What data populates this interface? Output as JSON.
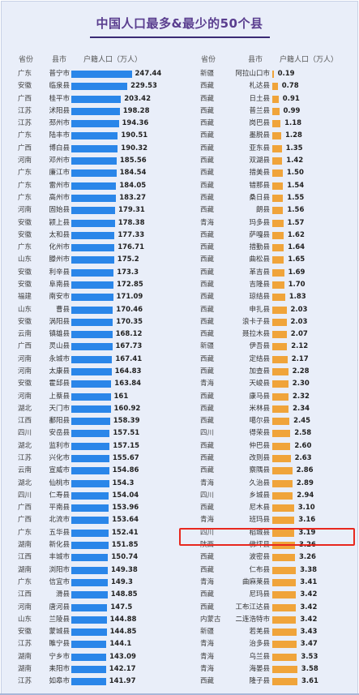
{
  "title": "中国人口最多&最少的50个县",
  "headers": {
    "prov": "省份",
    "county": "县市",
    "value": "户籍人口（万人）"
  },
  "colors": {
    "left_bar": "#2a86e9",
    "right_bar": "#f0a43a",
    "highlight": "#e8281e"
  },
  "chart_data": [
    {
      "type": "bar",
      "orientation": "horizontal",
      "title": "中国人口最多&最少的50个县",
      "unit": "户籍人口（万人）",
      "rows": [
        {
          "prov": "广东",
          "county": "普宁市",
          "value": "247.44"
        },
        {
          "prov": "安徽",
          "county": "临泉县",
          "value": "229.53"
        },
        {
          "prov": "广西",
          "county": "桂平市",
          "value": "203.42"
        },
        {
          "prov": "江苏",
          "county": "沭阳县",
          "value": "198.28"
        },
        {
          "prov": "江苏",
          "county": "邳州市",
          "value": "194.36"
        },
        {
          "prov": "广东",
          "county": "陆丰市",
          "value": "190.51"
        },
        {
          "prov": "广西",
          "county": "博白县",
          "value": "190.32"
        },
        {
          "prov": "河南",
          "county": "邓州市",
          "value": "185.56"
        },
        {
          "prov": "广东",
          "county": "廉江市",
          "value": "184.54"
        },
        {
          "prov": "广东",
          "county": "雷州市",
          "value": "184.05"
        },
        {
          "prov": "广东",
          "county": "高州市",
          "value": "183.27"
        },
        {
          "prov": "河南",
          "county": "固始县",
          "value": "179.31"
        },
        {
          "prov": "安徽",
          "county": "颍上县",
          "value": "178.38"
        },
        {
          "prov": "安徽",
          "county": "太和县",
          "value": "177.33"
        },
        {
          "prov": "广东",
          "county": "化州市",
          "value": "176.71"
        },
        {
          "prov": "山东",
          "county": "滕州市",
          "value": "175.2"
        },
        {
          "prov": "安徽",
          "county": "利辛县",
          "value": "173.3"
        },
        {
          "prov": "安徽",
          "county": "阜南县",
          "value": "172.85"
        },
        {
          "prov": "福建",
          "county": "南安市",
          "value": "171.09"
        },
        {
          "prov": "山东",
          "county": "曹县",
          "value": "170.46"
        },
        {
          "prov": "安徽",
          "county": "涡阳县",
          "value": "170.35"
        },
        {
          "prov": "云南",
          "county": "镇雄县",
          "value": "168.12"
        },
        {
          "prov": "广西",
          "county": "灵山县",
          "value": "167.73"
        },
        {
          "prov": "河南",
          "county": "永城市",
          "value": "167.41"
        },
        {
          "prov": "河南",
          "county": "太康县",
          "value": "164.83"
        },
        {
          "prov": "安徽",
          "county": "霍邱县",
          "value": "163.84"
        },
        {
          "prov": "河南",
          "county": "上蔡县",
          "value": "161"
        },
        {
          "prov": "湖北",
          "county": "天门市",
          "value": "160.92"
        },
        {
          "prov": "江西",
          "county": "鄱阳县",
          "value": "158.39"
        },
        {
          "prov": "四川",
          "county": "安岳县",
          "value": "157.51"
        },
        {
          "prov": "湖北",
          "county": "监利市",
          "value": "157.15"
        },
        {
          "prov": "江苏",
          "county": "兴化市",
          "value": "155.67"
        },
        {
          "prov": "云南",
          "county": "宣威市",
          "value": "154.86"
        },
        {
          "prov": "湖北",
          "county": "仙桃市",
          "value": "154.3"
        },
        {
          "prov": "四川",
          "county": "仁寿县",
          "value": "154.04"
        },
        {
          "prov": "广西",
          "county": "平南县",
          "value": "153.96"
        },
        {
          "prov": "广西",
          "county": "北流市",
          "value": "153.64"
        },
        {
          "prov": "广东",
          "county": "五华县",
          "value": "152.41"
        },
        {
          "prov": "湖南",
          "county": "新化县",
          "value": "151.85"
        },
        {
          "prov": "江西",
          "county": "丰城市",
          "value": "150.74"
        },
        {
          "prov": "湖南",
          "county": "浏阳市",
          "value": "149.38"
        },
        {
          "prov": "广东",
          "county": "信宜市",
          "value": "149.3"
        },
        {
          "prov": "江西",
          "county": "滑县",
          "value": "148.85"
        },
        {
          "prov": "河南",
          "county": "唐河县",
          "value": "147.5"
        },
        {
          "prov": "山东",
          "county": "兰陵县",
          "value": "144.88"
        },
        {
          "prov": "安徽",
          "county": "蒙城县",
          "value": "144.85"
        },
        {
          "prov": "江苏",
          "county": "睢宁县",
          "value": "144.1"
        },
        {
          "prov": "湖南",
          "county": "宁乡市",
          "value": "143.09"
        },
        {
          "prov": "湖南",
          "county": "耒阳市",
          "value": "142.17"
        },
        {
          "prov": "江苏",
          "county": "如皋市",
          "value": "141.97"
        }
      ]
    },
    {
      "type": "bar",
      "orientation": "horizontal",
      "title": "中国人口最多&最少的50个县",
      "unit": "户籍人口（万人）",
      "rows": [
        {
          "prov": "新疆",
          "county": "阿拉山口市",
          "value": "0.19"
        },
        {
          "prov": "西藏",
          "county": "札达县",
          "value": "0.78"
        },
        {
          "prov": "西藏",
          "county": "日土县",
          "value": "0.91"
        },
        {
          "prov": "西藏",
          "county": "普兰县",
          "value": "0.99"
        },
        {
          "prov": "西藏",
          "county": "岗巴县",
          "value": "1.18"
        },
        {
          "prov": "西藏",
          "county": "墨脱县",
          "value": "1.28"
        },
        {
          "prov": "西藏",
          "county": "亚东县",
          "value": "1.35"
        },
        {
          "prov": "西藏",
          "county": "双湖县",
          "value": "1.42"
        },
        {
          "prov": "西藏",
          "county": "措美县",
          "value": "1.50"
        },
        {
          "prov": "西藏",
          "county": "错那县",
          "value": "1.54"
        },
        {
          "prov": "西藏",
          "county": "桑日县",
          "value": "1.55"
        },
        {
          "prov": "西藏",
          "county": "朗县",
          "value": "1.56"
        },
        {
          "prov": "青海",
          "county": "玛多县",
          "value": "1.57"
        },
        {
          "prov": "西藏",
          "county": "萨嘎县",
          "value": "1.62"
        },
        {
          "prov": "西藏",
          "county": "措勤县",
          "value": "1.64"
        },
        {
          "prov": "西藏",
          "county": "曲松县",
          "value": "1.65"
        },
        {
          "prov": "西藏",
          "county": "革吉县",
          "value": "1.69"
        },
        {
          "prov": "西藏",
          "county": "吉隆县",
          "value": "1.70"
        },
        {
          "prov": "西藏",
          "county": "琼结县",
          "value": "1.83"
        },
        {
          "prov": "西藏",
          "county": "申扎县",
          "value": "2.03"
        },
        {
          "prov": "西藏",
          "county": "浪卡子县",
          "value": "2.03"
        },
        {
          "prov": "西藏",
          "county": "聂拉木县",
          "value": "2.07"
        },
        {
          "prov": "新疆",
          "county": "伊吾县",
          "value": "2.12"
        },
        {
          "prov": "西藏",
          "county": "定结县",
          "value": "2.17"
        },
        {
          "prov": "西藏",
          "county": "加查县",
          "value": "2.28"
        },
        {
          "prov": "青海",
          "county": "天峻县",
          "value": "2.30"
        },
        {
          "prov": "西藏",
          "county": "康马县",
          "value": "2.32"
        },
        {
          "prov": "西藏",
          "county": "米林县",
          "value": "2.34"
        },
        {
          "prov": "西藏",
          "county": "噶尔县",
          "value": "2.45"
        },
        {
          "prov": "四川",
          "county": "得荣县",
          "value": "2.58"
        },
        {
          "prov": "西藏",
          "county": "仲巴县",
          "value": "2.60"
        },
        {
          "prov": "西藏",
          "county": "改则县",
          "value": "2.63"
        },
        {
          "prov": "西藏",
          "county": "察隅县",
          "value": "2.86"
        },
        {
          "prov": "青海",
          "county": "久治县",
          "value": "2.89"
        },
        {
          "prov": "四川",
          "county": "乡城县",
          "value": "2.94"
        },
        {
          "prov": "西藏",
          "county": "尼木县",
          "value": "3.10"
        },
        {
          "prov": "青海",
          "county": "班玛县",
          "value": "3.16"
        },
        {
          "prov": "四川",
          "county": "稻城县",
          "value": "3.19"
        },
        {
          "prov": "陕西",
          "county": "佛坪县",
          "value": "3.26",
          "highlighted": true
        },
        {
          "prov": "西藏",
          "county": "波密县",
          "value": "3.26"
        },
        {
          "prov": "西藏",
          "county": "仁布县",
          "value": "3.38"
        },
        {
          "prov": "青海",
          "county": "曲麻莱县",
          "value": "3.41"
        },
        {
          "prov": "西藏",
          "county": "尼玛县",
          "value": "3.42"
        },
        {
          "prov": "西藏",
          "county": "工布江达县",
          "value": "3.42"
        },
        {
          "prov": "内蒙古",
          "county": "二连浩特市",
          "value": "3.42"
        },
        {
          "prov": "新疆",
          "county": "若羌县",
          "value": "3.43"
        },
        {
          "prov": "青海",
          "county": "治多县",
          "value": "3.47"
        },
        {
          "prov": "青海",
          "county": "乌兰县",
          "value": "3.53"
        },
        {
          "prov": "青海",
          "county": "海晏县",
          "value": "3.58"
        },
        {
          "prov": "西藏",
          "county": "隆子县",
          "value": "3.61"
        }
      ]
    }
  ]
}
